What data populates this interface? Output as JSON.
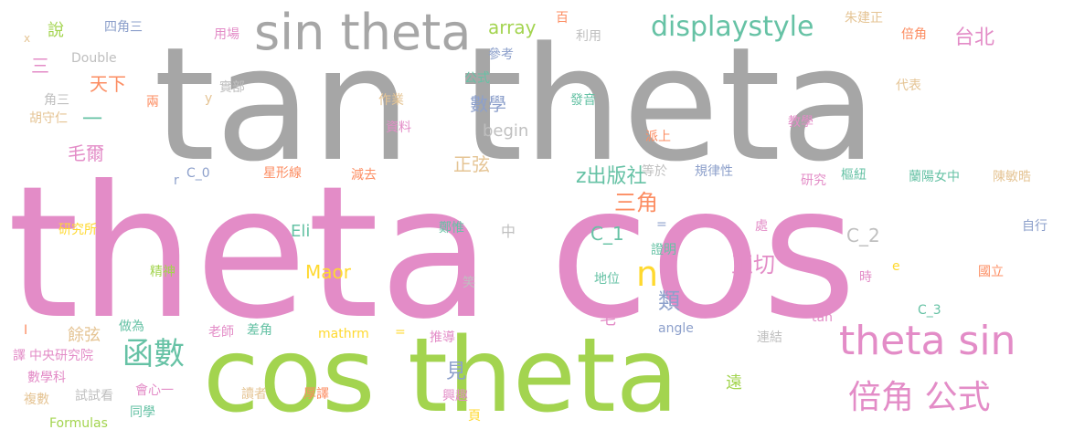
{
  "colors": {
    "gray": "#a6a6a6",
    "pink": "#e38cc7",
    "green": "#a3d44f",
    "teal": "#66c2a5",
    "orange": "#fc8d62",
    "blue": "#8da0cb",
    "yellow": "#ffd92f",
    "tan": "#e5c494",
    "light_gray": "#bfbfbf"
  },
  "words": [
    {
      "text": "tan theta",
      "color": "gray"
    },
    {
      "text": "theta cos",
      "color": "pink"
    },
    {
      "text": "cos theta",
      "color": "green"
    },
    {
      "text": "sin theta",
      "color": "gray"
    },
    {
      "text": "theta sin",
      "color": "pink"
    },
    {
      "text": "displaystyle",
      "color": "teal"
    },
    {
      "text": "倍角 公式",
      "color": "pink"
    },
    {
      "text": "函數",
      "color": "teal"
    },
    {
      "text": "n",
      "color": "yellow"
    },
    {
      "text": "正切",
      "color": "pink"
    },
    {
      "text": "台北",
      "color": "pink"
    },
    {
      "text": "三角",
      "color": "orange"
    },
    {
      "text": "z出版社",
      "color": "teal"
    },
    {
      "text": "數學",
      "color": "blue"
    },
    {
      "text": "正弦",
      "color": "tan"
    },
    {
      "text": "類",
      "color": "blue"
    },
    {
      "text": "見",
      "color": "blue"
    },
    {
      "text": "array",
      "color": "green"
    },
    {
      "text": "Maor",
      "color": "yellow"
    },
    {
      "text": "C_2",
      "color": "light_gray"
    },
    {
      "text": "C_1",
      "color": "teal"
    },
    {
      "text": "Eli",
      "color": "teal"
    },
    {
      "text": "毛爾",
      "color": "pink"
    },
    {
      "text": "說",
      "color": "green"
    },
    {
      "text": "三",
      "color": "pink"
    },
    {
      "text": "天下",
      "color": "orange"
    },
    {
      "text": "一",
      "color": "teal"
    },
    {
      "text": "餘弦",
      "color": "tan"
    },
    {
      "text": "begin",
      "color": "light_gray"
    },
    {
      "text": "毛",
      "color": "pink"
    },
    {
      "text": "中",
      "color": "light_gray"
    },
    {
      "text": "遠",
      "color": "green"
    },
    {
      "text": "x",
      "color": "tan"
    },
    {
      "text": "四角三",
      "color": "blue"
    },
    {
      "text": "用場",
      "color": "pink"
    },
    {
      "text": "百",
      "color": "orange"
    },
    {
      "text": "利用",
      "color": "light_gray"
    },
    {
      "text": "朱建正",
      "color": "tan"
    },
    {
      "text": "倍角",
      "color": "orange"
    },
    {
      "text": "Double",
      "color": "light_gray"
    },
    {
      "text": "參考",
      "color": "blue"
    },
    {
      "text": "公式",
      "color": "teal"
    },
    {
      "text": "實部",
      "color": "light_gray"
    },
    {
      "text": "角三",
      "color": "light_gray"
    },
    {
      "text": "兩",
      "color": "orange"
    },
    {
      "text": "y",
      "color": "tan"
    },
    {
      "text": "作業",
      "color": "tan"
    },
    {
      "text": "發音",
      "color": "teal"
    },
    {
      "text": "代表",
      "color": "tan"
    },
    {
      "text": "胡守仁",
      "color": "tan"
    },
    {
      "text": "資料",
      "color": "pink"
    },
    {
      "text": "教學",
      "color": "pink"
    },
    {
      "text": "派上",
      "color": "orange"
    },
    {
      "text": "r",
      "color": "blue"
    },
    {
      "text": "C_0",
      "color": "blue"
    },
    {
      "text": "星形線",
      "color": "orange"
    },
    {
      "text": "減去",
      "color": "orange"
    },
    {
      "text": "等於",
      "color": "light_gray"
    },
    {
      "text": "規律性",
      "color": "blue"
    },
    {
      "text": "研究",
      "color": "pink"
    },
    {
      "text": "樞紐",
      "color": "teal"
    },
    {
      "text": "蘭陽女中",
      "color": "teal"
    },
    {
      "text": "陳敏晧",
      "color": "tan"
    },
    {
      "text": "研究所",
      "color": "yellow"
    },
    {
      "text": "鄭惟",
      "color": "teal"
    },
    {
      "text": "=",
      "color": "blue"
    },
    {
      "text": "處",
      "color": "pink"
    },
    {
      "text": "自行",
      "color": "blue"
    },
    {
      "text": "精神",
      "color": "green"
    },
    {
      "text": "編撰",
      "color": "pink"
    },
    {
      "text": "證明",
      "color": "teal"
    },
    {
      "text": "e",
      "color": "yellow"
    },
    {
      "text": "國立",
      "color": "orange"
    },
    {
      "text": "笑",
      "color": "light_gray"
    },
    {
      "text": "地位",
      "color": "teal"
    },
    {
      "text": "時",
      "color": "pink"
    },
    {
      "text": "C_3",
      "color": "teal"
    },
    {
      "text": "做為",
      "color": "teal"
    },
    {
      "text": "老師",
      "color": "pink"
    },
    {
      "text": "差角",
      "color": "teal"
    },
    {
      "text": "tan",
      "color": "pink"
    },
    {
      "text": "angle",
      "color": "blue"
    },
    {
      "text": "I",
      "color": "orange"
    },
    {
      "text": "mathrm",
      "color": "yellow"
    },
    {
      "text": "=",
      "color": "yellow"
    },
    {
      "text": "推導",
      "color": "pink"
    },
    {
      "text": "連結",
      "color": "light_gray"
    },
    {
      "text": "譯",
      "color": "pink"
    },
    {
      "text": "中央研究院",
      "color": "pink"
    },
    {
      "text": "數學科",
      "color": "pink"
    },
    {
      "text": "興趣",
      "color": "pink"
    },
    {
      "text": "會心一",
      "color": "pink"
    },
    {
      "text": "複數",
      "color": "tan"
    },
    {
      "text": "試試看",
      "color": "light_gray"
    },
    {
      "text": "讀者",
      "color": "tan"
    },
    {
      "text": "厚譯",
      "color": "orange"
    },
    {
      "text": "同學",
      "color": "teal"
    },
    {
      "text": "頁",
      "color": "yellow"
    },
    {
      "text": "Formulas",
      "color": "green"
    }
  ]
}
